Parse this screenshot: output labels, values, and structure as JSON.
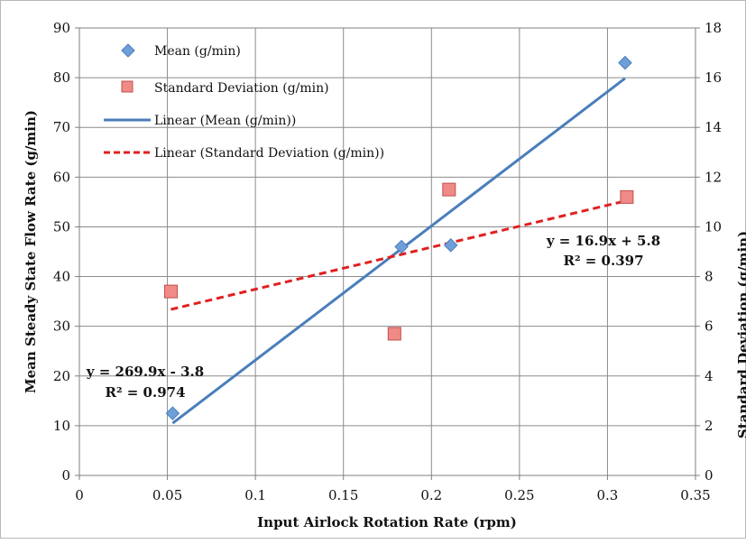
{
  "chart_data": {
    "type": "scatter",
    "x_axis": {
      "label": "Input Airlock Rotation Rate (rpm)",
      "range": [
        0,
        0.35
      ],
      "ticks": [
        "0",
        "0.05",
        "0.1",
        "0.15",
        "0.2",
        "0.25",
        "0.3",
        "0.35"
      ]
    },
    "y_axis_left": {
      "label": "Mean Steady State Flow Rate (g/min)",
      "range": [
        0,
        90
      ],
      "ticks": [
        "0",
        "10",
        "20",
        "30",
        "40",
        "50",
        "60",
        "70",
        "80",
        "90"
      ]
    },
    "y_axis_right": {
      "label": "Standard Deviation (g/min)",
      "range": [
        0,
        18
      ],
      "ticks": [
        "0",
        "2",
        "4",
        "6",
        "8",
        "10",
        "12",
        "14",
        "16",
        "18"
      ]
    },
    "grid": true,
    "legend_position": "top-left",
    "series": [
      {
        "name": "Mean (g/min)",
        "axis": "left",
        "marker": "diamond",
        "color": "#6f9fd8",
        "points": [
          [
            0.053,
            12.5
          ],
          [
            0.183,
            46
          ],
          [
            0.211,
            46.3
          ],
          [
            0.31,
            83
          ]
        ]
      },
      {
        "name": "Standard Deviation (g/min)",
        "axis": "right",
        "marker": "square",
        "color": "#f08a87",
        "points": [
          [
            0.052,
            7.4
          ],
          [
            0.179,
            5.7
          ],
          [
            0.21,
            11.5
          ],
          [
            0.311,
            11.2
          ]
        ]
      }
    ],
    "trendlines": [
      {
        "name": "Linear (Mean (g/min))",
        "axis": "left",
        "style": "solid",
        "color": "#4a7ebb",
        "slope": 269.9,
        "intercept": -3.8,
        "x_range": [
          0.053,
          0.31
        ],
        "equation": "y = 269.9x - 3.8",
        "r2_label": "R² = 0.974"
      },
      {
        "name": "Linear (Standard Deviation (g/min))",
        "axis": "right",
        "style": "dashed",
        "color": "#e02020",
        "slope": 16.9,
        "intercept": 5.8,
        "x_range": [
          0.052,
          0.311
        ],
        "equation": "y = 16.9x + 5.8",
        "r2_label": "R² = 0.397"
      }
    ]
  }
}
